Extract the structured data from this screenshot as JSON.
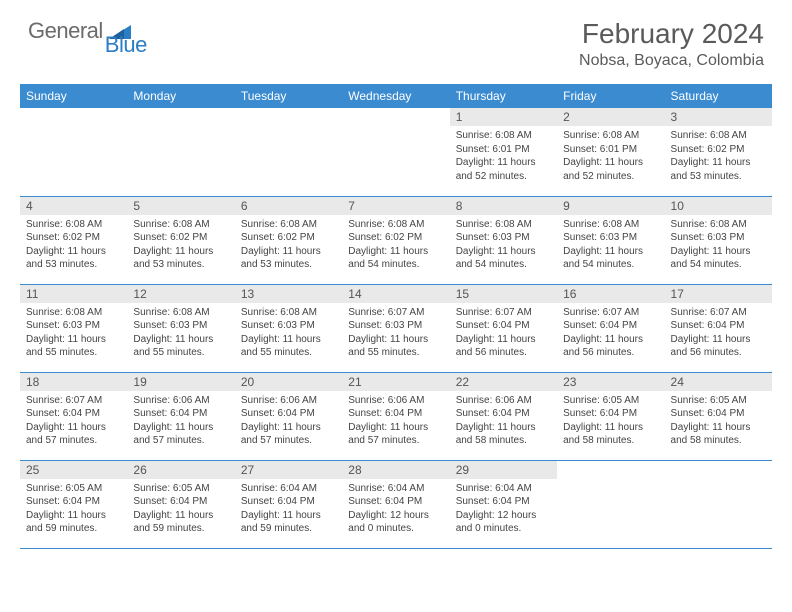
{
  "brand": {
    "part1": "General",
    "part2": "Blue",
    "accent": "#2b7dc4"
  },
  "title": "February 2024",
  "location": "Nobsa, Boyaca, Colombia",
  "colors": {
    "header_bg": "#3b8bd1",
    "header_fg": "#ffffff",
    "daynum_bg": "#e9e9e9",
    "row_border": "#3b8bd1",
    "text": "#444444"
  },
  "day_names": [
    "Sunday",
    "Monday",
    "Tuesday",
    "Wednesday",
    "Thursday",
    "Friday",
    "Saturday"
  ],
  "weeks": [
    [
      null,
      null,
      null,
      null,
      {
        "n": "1",
        "sr": "6:08 AM",
        "ss": "6:01 PM",
        "dl": "11 hours and 52 minutes."
      },
      {
        "n": "2",
        "sr": "6:08 AM",
        "ss": "6:01 PM",
        "dl": "11 hours and 52 minutes."
      },
      {
        "n": "3",
        "sr": "6:08 AM",
        "ss": "6:02 PM",
        "dl": "11 hours and 53 minutes."
      }
    ],
    [
      {
        "n": "4",
        "sr": "6:08 AM",
        "ss": "6:02 PM",
        "dl": "11 hours and 53 minutes."
      },
      {
        "n": "5",
        "sr": "6:08 AM",
        "ss": "6:02 PM",
        "dl": "11 hours and 53 minutes."
      },
      {
        "n": "6",
        "sr": "6:08 AM",
        "ss": "6:02 PM",
        "dl": "11 hours and 53 minutes."
      },
      {
        "n": "7",
        "sr": "6:08 AM",
        "ss": "6:02 PM",
        "dl": "11 hours and 54 minutes."
      },
      {
        "n": "8",
        "sr": "6:08 AM",
        "ss": "6:03 PM",
        "dl": "11 hours and 54 minutes."
      },
      {
        "n": "9",
        "sr": "6:08 AM",
        "ss": "6:03 PM",
        "dl": "11 hours and 54 minutes."
      },
      {
        "n": "10",
        "sr": "6:08 AM",
        "ss": "6:03 PM",
        "dl": "11 hours and 54 minutes."
      }
    ],
    [
      {
        "n": "11",
        "sr": "6:08 AM",
        "ss": "6:03 PM",
        "dl": "11 hours and 55 minutes."
      },
      {
        "n": "12",
        "sr": "6:08 AM",
        "ss": "6:03 PM",
        "dl": "11 hours and 55 minutes."
      },
      {
        "n": "13",
        "sr": "6:08 AM",
        "ss": "6:03 PM",
        "dl": "11 hours and 55 minutes."
      },
      {
        "n": "14",
        "sr": "6:07 AM",
        "ss": "6:03 PM",
        "dl": "11 hours and 55 minutes."
      },
      {
        "n": "15",
        "sr": "6:07 AM",
        "ss": "6:04 PM",
        "dl": "11 hours and 56 minutes."
      },
      {
        "n": "16",
        "sr": "6:07 AM",
        "ss": "6:04 PM",
        "dl": "11 hours and 56 minutes."
      },
      {
        "n": "17",
        "sr": "6:07 AM",
        "ss": "6:04 PM",
        "dl": "11 hours and 56 minutes."
      }
    ],
    [
      {
        "n": "18",
        "sr": "6:07 AM",
        "ss": "6:04 PM",
        "dl": "11 hours and 57 minutes."
      },
      {
        "n": "19",
        "sr": "6:06 AM",
        "ss": "6:04 PM",
        "dl": "11 hours and 57 minutes."
      },
      {
        "n": "20",
        "sr": "6:06 AM",
        "ss": "6:04 PM",
        "dl": "11 hours and 57 minutes."
      },
      {
        "n": "21",
        "sr": "6:06 AM",
        "ss": "6:04 PM",
        "dl": "11 hours and 57 minutes."
      },
      {
        "n": "22",
        "sr": "6:06 AM",
        "ss": "6:04 PM",
        "dl": "11 hours and 58 minutes."
      },
      {
        "n": "23",
        "sr": "6:05 AM",
        "ss": "6:04 PM",
        "dl": "11 hours and 58 minutes."
      },
      {
        "n": "24",
        "sr": "6:05 AM",
        "ss": "6:04 PM",
        "dl": "11 hours and 58 minutes."
      }
    ],
    [
      {
        "n": "25",
        "sr": "6:05 AM",
        "ss": "6:04 PM",
        "dl": "11 hours and 59 minutes."
      },
      {
        "n": "26",
        "sr": "6:05 AM",
        "ss": "6:04 PM",
        "dl": "11 hours and 59 minutes."
      },
      {
        "n": "27",
        "sr": "6:04 AM",
        "ss": "6:04 PM",
        "dl": "11 hours and 59 minutes."
      },
      {
        "n": "28",
        "sr": "6:04 AM",
        "ss": "6:04 PM",
        "dl": "12 hours and 0 minutes."
      },
      {
        "n": "29",
        "sr": "6:04 AM",
        "ss": "6:04 PM",
        "dl": "12 hours and 0 minutes."
      },
      null,
      null
    ]
  ],
  "labels": {
    "sunrise": "Sunrise:",
    "sunset": "Sunset:",
    "daylight": "Daylight:"
  }
}
